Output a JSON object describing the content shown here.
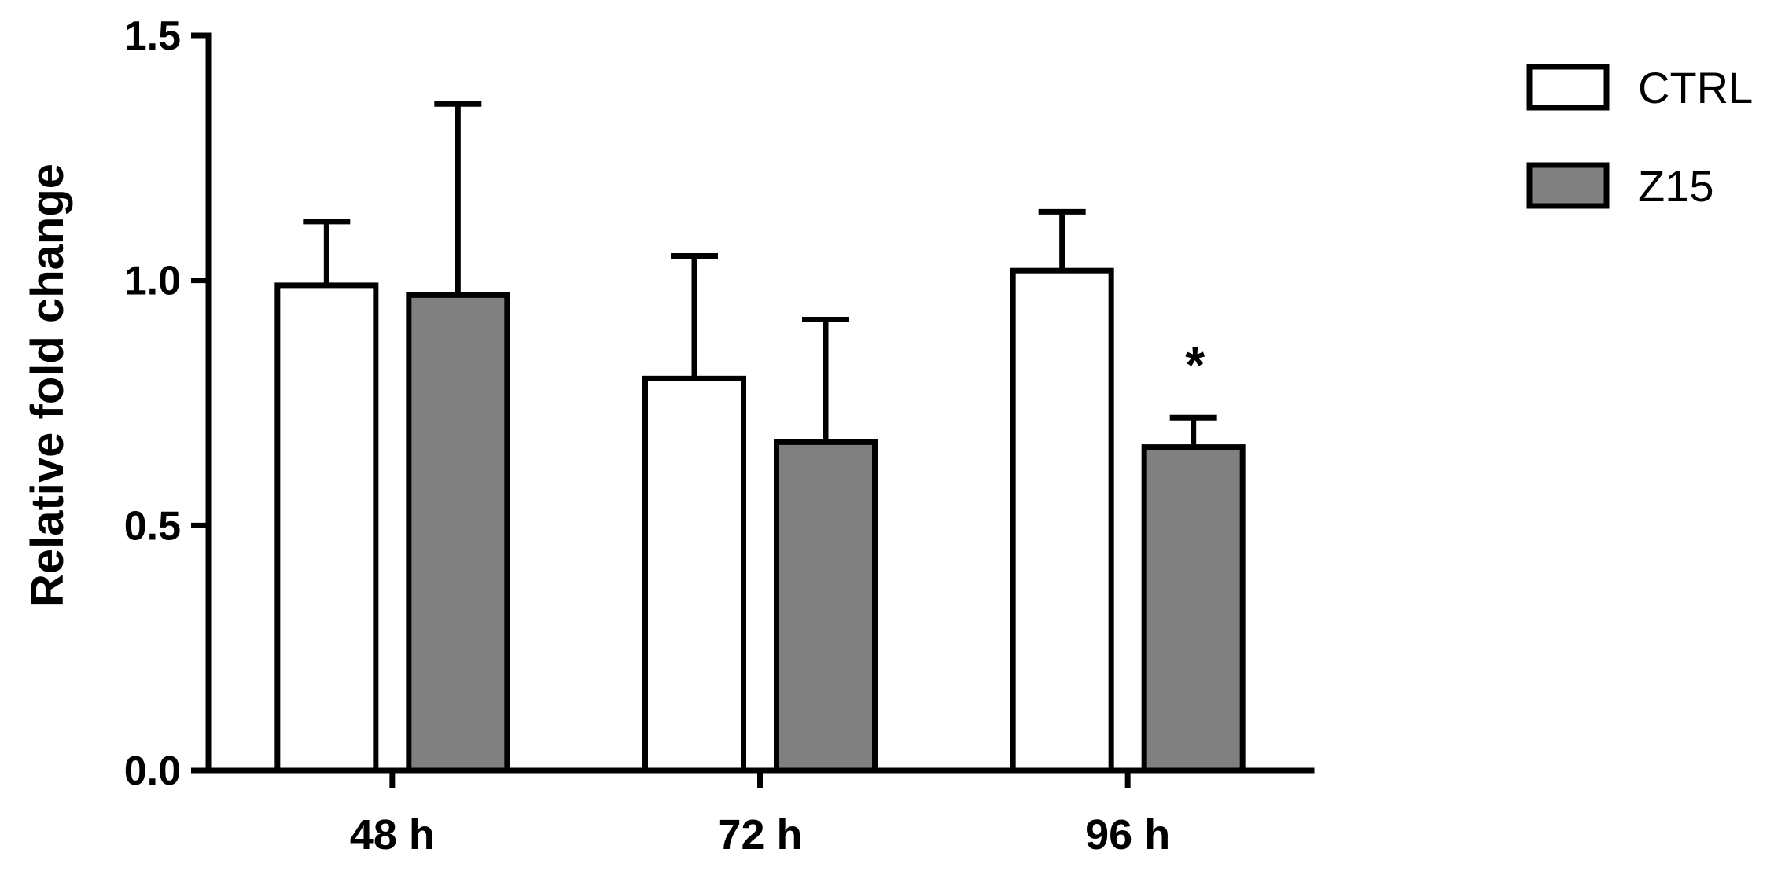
{
  "chart_data": {
    "type": "bar",
    "title": "",
    "xlabel": "",
    "ylabel": "Relative fold change",
    "categories": [
      "48 h",
      "72 h",
      "96 h"
    ],
    "ylim": [
      0,
      1.5
    ],
    "yticks": [
      "0.0",
      "0.5",
      "1.0",
      "1.5"
    ],
    "series": [
      {
        "name": "CTRL",
        "color": "#ffffff",
        "values": [
          0.99,
          0.8,
          1.02
        ],
        "errors": [
          0.13,
          0.25,
          0.12
        ]
      },
      {
        "name": "Z15",
        "color": "#808080",
        "values": [
          0.97,
          0.67,
          0.66
        ],
        "errors": [
          0.39,
          0.25,
          0.06
        ]
      }
    ],
    "annotations": [
      {
        "text": "*",
        "category": "96 h",
        "series": "Z15"
      }
    ],
    "legend_position": "top-right",
    "grid": false
  }
}
